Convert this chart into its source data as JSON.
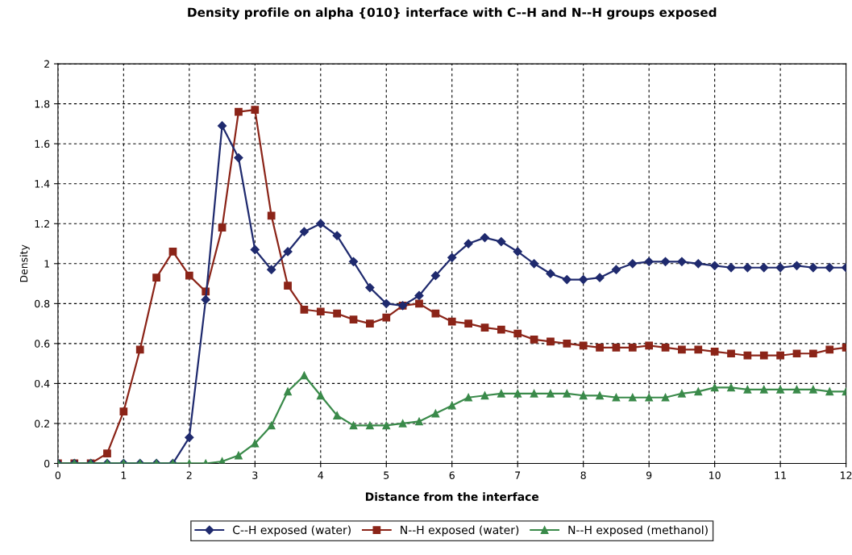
{
  "chart_data": {
    "type": "line",
    "title": "Density profile on alpha {010} interface with C--H and N--H groups exposed",
    "xlabel": "Distance from the interface",
    "ylabel": "Density",
    "x": [
      0,
      0.25,
      0.5,
      0.75,
      1,
      1.25,
      1.5,
      1.75,
      2,
      2.25,
      2.5,
      2.75,
      3,
      3.25,
      3.5,
      3.75,
      4,
      4.25,
      4.5,
      4.75,
      5,
      5.25,
      5.5,
      5.75,
      6,
      6.25,
      6.5,
      6.75,
      7,
      7.25,
      7.5,
      7.75,
      8,
      8.25,
      8.5,
      8.75,
      9,
      9.25,
      9.5,
      9.75,
      10,
      10.25,
      10.5,
      10.75,
      11,
      11.25,
      11.5,
      11.75,
      12
    ],
    "series": [
      {
        "name": "C--H exposed (water)",
        "color": "#1f2a6e",
        "marker": "diamond",
        "values": [
          0,
          0,
          0,
          0,
          0,
          0,
          0,
          0,
          0.13,
          0.82,
          1.69,
          1.53,
          1.07,
          0.97,
          1.06,
          1.16,
          1.2,
          1.14,
          1.01,
          0.88,
          0.8,
          0.79,
          0.84,
          0.94,
          1.03,
          1.1,
          1.13,
          1.11,
          1.06,
          1.0,
          0.95,
          0.92,
          0.92,
          0.93,
          0.97,
          1.0,
          1.01,
          1.01,
          1.01,
          1.0,
          0.99,
          0.98,
          0.98,
          0.98,
          0.98,
          0.99,
          0.98,
          0.98,
          0.98
        ]
      },
      {
        "name": "N--H exposed (water)",
        "color": "#8b2418",
        "marker": "square",
        "values": [
          0,
          0,
          0,
          0.05,
          0.26,
          0.57,
          0.93,
          1.06,
          0.94,
          0.86,
          1.18,
          1.76,
          1.77,
          1.24,
          0.89,
          0.77,
          0.76,
          0.75,
          0.72,
          0.7,
          0.73,
          0.79,
          0.8,
          0.75,
          0.71,
          0.7,
          0.68,
          0.67,
          0.65,
          0.62,
          0.61,
          0.6,
          0.59,
          0.58,
          0.58,
          0.58,
          0.59,
          0.58,
          0.57,
          0.57,
          0.56,
          0.55,
          0.54,
          0.54,
          0.54,
          0.55,
          0.55,
          0.57,
          0.58
        ]
      },
      {
        "name": "N--H exposed (methanol)",
        "color": "#3a8a4a",
        "marker": "triangle",
        "values": [
          0,
          0,
          0,
          0,
          0,
          0,
          0,
          0,
          0,
          0,
          0.01,
          0.04,
          0.1,
          0.19,
          0.36,
          0.44,
          0.34,
          0.24,
          0.19,
          0.19,
          0.19,
          0.2,
          0.21,
          0.25,
          0.29,
          0.33,
          0.34,
          0.35,
          0.35,
          0.35,
          0.35,
          0.35,
          0.34,
          0.34,
          0.33,
          0.33,
          0.33,
          0.33,
          0.35,
          0.36,
          0.38,
          0.38,
          0.37,
          0.37,
          0.37,
          0.37,
          0.37,
          0.36,
          0.36
        ]
      }
    ],
    "xlim": [
      0,
      12
    ],
    "xticks": [
      0,
      1,
      2,
      3,
      4,
      5,
      6,
      7,
      8,
      9,
      10,
      11,
      12
    ],
    "ylim": [
      0,
      2
    ],
    "yticks": [
      0,
      0.2,
      0.4,
      0.6,
      0.8,
      1,
      1.2,
      1.4,
      1.6,
      1.8,
      2
    ],
    "grid": true,
    "line_style": "solid",
    "legend": "bottom"
  }
}
